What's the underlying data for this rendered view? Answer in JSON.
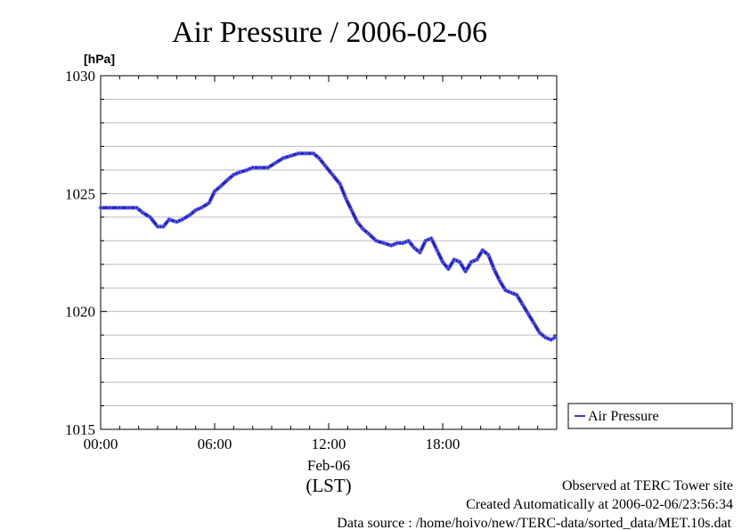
{
  "chart_data": {
    "type": "line",
    "title": "Air Pressure / 2006-02-06",
    "ylabel": "[hPa]",
    "xlabel": "(LST)",
    "x_date_label": "Feb-06",
    "ylim": [
      1015,
      1030
    ],
    "xlim": [
      0,
      24
    ],
    "yticks": [
      {
        "value": 1015,
        "label": "1015"
      },
      {
        "value": 1020,
        "label": "1020"
      },
      {
        "value": 1025,
        "label": "1025"
      },
      {
        "value": 1030,
        "label": "1030"
      }
    ],
    "xticks": [
      {
        "value": 0,
        "label": "00:00"
      },
      {
        "value": 6,
        "label": "06:00"
      },
      {
        "value": 12,
        "label": "12:00"
      },
      {
        "value": 18,
        "label": "18:00"
      }
    ],
    "grid": true,
    "legend_position": "bottom-right-outside",
    "series": [
      {
        "name": "Air Pressure",
        "color": "#3a3ae8",
        "x": [
          0.0,
          0.5,
          1.0,
          1.5,
          1.9,
          2.2,
          2.6,
          3.0,
          3.3,
          3.6,
          4.0,
          4.3,
          4.7,
          5.0,
          5.3,
          5.7,
          6.0,
          6.3,
          6.7,
          7.0,
          7.3,
          7.7,
          8.0,
          8.4,
          8.8,
          9.2,
          9.6,
          10.0,
          10.4,
          10.8,
          11.2,
          11.5,
          11.8,
          12.2,
          12.6,
          12.9,
          13.2,
          13.5,
          13.8,
          14.1,
          14.5,
          14.9,
          15.3,
          15.6,
          15.9,
          16.2,
          16.5,
          16.8,
          17.1,
          17.4,
          17.7,
          18.0,
          18.3,
          18.6,
          18.9,
          19.2,
          19.5,
          19.8,
          20.1,
          20.4,
          20.7,
          21.0,
          21.3,
          21.6,
          21.9,
          22.2,
          22.5,
          22.8,
          23.1,
          23.4,
          23.7,
          23.9
        ],
        "y": [
          1024.4,
          1024.4,
          1024.4,
          1024.4,
          1024.4,
          1024.2,
          1024.0,
          1023.6,
          1023.6,
          1023.9,
          1023.8,
          1023.9,
          1024.1,
          1024.3,
          1024.4,
          1024.6,
          1025.1,
          1025.3,
          1025.6,
          1025.8,
          1025.9,
          1026.0,
          1026.1,
          1026.1,
          1026.1,
          1026.3,
          1026.5,
          1026.6,
          1026.7,
          1026.7,
          1026.7,
          1026.5,
          1026.2,
          1025.8,
          1025.4,
          1024.8,
          1024.3,
          1023.8,
          1023.5,
          1023.3,
          1023.0,
          1022.9,
          1022.8,
          1022.9,
          1022.9,
          1023.0,
          1022.7,
          1022.5,
          1023.0,
          1023.1,
          1022.6,
          1022.1,
          1021.8,
          1022.2,
          1022.1,
          1021.7,
          1022.1,
          1022.2,
          1022.6,
          1022.4,
          1021.8,
          1021.3,
          1020.9,
          1020.8,
          1020.7,
          1020.3,
          1019.9,
          1019.5,
          1019.1,
          1018.9,
          1018.8,
          1018.9
        ]
      }
    ]
  },
  "footer": {
    "line1": "Observed at TERC Tower site",
    "line2": "Created Automatically at 2006-02-06/23:56:34",
    "line3": "Data source : /home/hoivo/new/TERC-data/sorted_data/MET.10s.dat"
  }
}
